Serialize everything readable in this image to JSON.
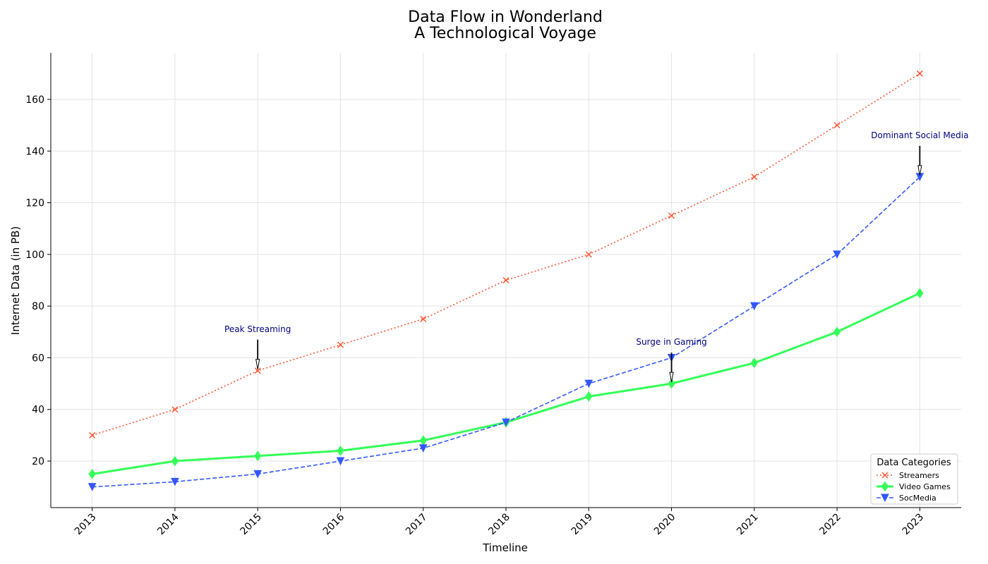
{
  "chart_data": {
    "type": "line",
    "title": "Data Flow in Wonderland",
    "subtitle": "A Technological Voyage",
    "xlabel": "Timeline",
    "ylabel": "Internet Data (in PB)",
    "x": [
      "2013",
      "2014",
      "2015",
      "2016",
      "2017",
      "2018",
      "2019",
      "2020",
      "2021",
      "2022",
      "2023"
    ],
    "xlim": [
      2012.5,
      2023.5
    ],
    "ylim": [
      2,
      178
    ],
    "yticks": [
      20,
      40,
      60,
      80,
      100,
      120,
      140,
      160
    ],
    "grid": true,
    "legend": {
      "title": "Data Categories",
      "position": "lower-right"
    },
    "series": [
      {
        "name": "Streamers",
        "values": [
          30,
          40,
          55,
          65,
          75,
          90,
          100,
          115,
          130,
          150,
          170
        ],
        "color": "#ff5733",
        "style": "dotted",
        "marker": "x"
      },
      {
        "name": "Video Games",
        "values": [
          15,
          20,
          22,
          24,
          28,
          35,
          45,
          50,
          58,
          70,
          85
        ],
        "color": "#33ff57",
        "style": "solid",
        "marker": "diamond"
      },
      {
        "name": "SocMedia",
        "values": [
          10,
          12,
          15,
          20,
          25,
          35,
          50,
          60,
          80,
          100,
          130
        ],
        "color": "#3357ff",
        "style": "dashed",
        "marker": "triangle-down"
      }
    ],
    "annotations": [
      {
        "text": "Peak Streaming",
        "x": "2015",
        "y": 55,
        "text_y": 70
      },
      {
        "text": "Surge in Gaming",
        "x": "2020",
        "y": 50,
        "text_y": 65
      },
      {
        "text": "Dominant Social Media",
        "x": "2023",
        "y": 130,
        "text_y": 145
      }
    ]
  }
}
